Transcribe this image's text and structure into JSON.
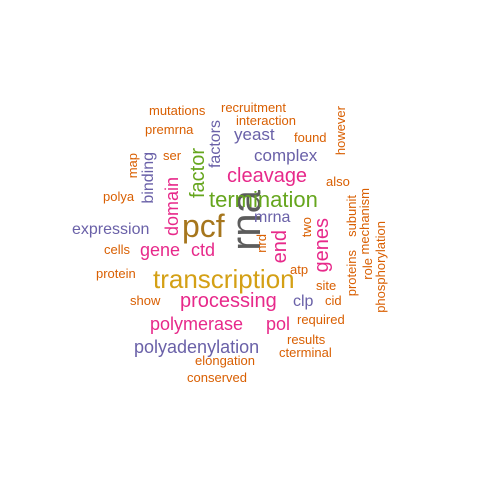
{
  "word_cloud": {
    "words": [
      {
        "id": "rna",
        "text": "rna",
        "color": "#5c5c5c"
      },
      {
        "id": "pcf",
        "text": "pcf",
        "color": "#a6761d"
      },
      {
        "id": "transcription",
        "text": "transcription",
        "color": "#d4a015"
      },
      {
        "id": "termination",
        "text": "termination",
        "color": "#66a61e"
      },
      {
        "id": "processing",
        "text": "processing",
        "color": "#e7298a"
      },
      {
        "id": "cleavage",
        "text": "cleavage",
        "color": "#e7298a"
      },
      {
        "id": "polymerase",
        "text": "polymerase",
        "color": "#e7298a"
      },
      {
        "id": "pol",
        "text": "pol",
        "color": "#e7298a"
      },
      {
        "id": "polyadenylation",
        "text": "polyadenylation",
        "color": "#6a61a8"
      },
      {
        "id": "domain",
        "text": "domain",
        "color": "#e7298a"
      },
      {
        "id": "factor",
        "text": "factor",
        "color": "#66a61e"
      },
      {
        "id": "gene",
        "text": "gene",
        "color": "#e7298a"
      },
      {
        "id": "ctd",
        "text": "ctd",
        "color": "#e7298a"
      },
      {
        "id": "end",
        "text": "end",
        "color": "#e7298a"
      },
      {
        "id": "genes",
        "text": "genes",
        "color": "#e7298a"
      },
      {
        "id": "complex",
        "text": "complex",
        "color": "#6a61a8"
      },
      {
        "id": "yeast",
        "text": "yeast",
        "color": "#6a61a8"
      },
      {
        "id": "factors",
        "text": "factors",
        "color": "#6a61a8"
      },
      {
        "id": "mrna",
        "text": "mrna",
        "color": "#6a61a8"
      },
      {
        "id": "expression",
        "text": "expression",
        "color": "#6a61a8"
      },
      {
        "id": "binding",
        "text": "binding",
        "color": "#6a61a8"
      },
      {
        "id": "clp",
        "text": "clp",
        "color": "#6a61a8"
      },
      {
        "id": "mutations",
        "text": "mutations",
        "color": "#d95f02"
      },
      {
        "id": "recruitment",
        "text": "recruitment",
        "color": "#d95f02"
      },
      {
        "id": "interaction",
        "text": "interaction",
        "color": "#d95f02"
      },
      {
        "id": "premrna",
        "text": "premrna",
        "color": "#d95f02"
      },
      {
        "id": "found",
        "text": "found",
        "color": "#d95f02"
      },
      {
        "id": "however",
        "text": "however",
        "color": "#d95f02"
      },
      {
        "id": "map",
        "text": "map",
        "color": "#d95f02"
      },
      {
        "id": "ser",
        "text": "ser",
        "color": "#d95f02"
      },
      {
        "id": "also",
        "text": "also",
        "color": "#d95f02"
      },
      {
        "id": "polya",
        "text": "polya",
        "color": "#d95f02"
      },
      {
        "id": "cells",
        "text": "cells",
        "color": "#d95f02"
      },
      {
        "id": "protein",
        "text": "protein",
        "color": "#d95f02"
      },
      {
        "id": "show",
        "text": "show",
        "color": "#d95f02"
      },
      {
        "id": "nrd",
        "text": "nrd",
        "color": "#d95f02"
      },
      {
        "id": "two",
        "text": "two",
        "color": "#d95f02"
      },
      {
        "id": "atp",
        "text": "atp",
        "color": "#d95f02"
      },
      {
        "id": "site",
        "text": "site",
        "color": "#d95f02"
      },
      {
        "id": "cid",
        "text": "cid",
        "color": "#d95f02"
      },
      {
        "id": "required",
        "text": "required",
        "color": "#d95f02"
      },
      {
        "id": "results",
        "text": "results",
        "color": "#d95f02"
      },
      {
        "id": "cterminal",
        "text": "cterminal",
        "color": "#d95f02"
      },
      {
        "id": "elongation",
        "text": "elongation",
        "color": "#d95f02"
      },
      {
        "id": "conserved",
        "text": "conserved",
        "color": "#d95f02"
      },
      {
        "id": "proteins",
        "text": "proteins",
        "color": "#d95f02"
      },
      {
        "id": "subunit",
        "text": "subunit",
        "color": "#d95f02"
      },
      {
        "id": "role",
        "text": "role",
        "color": "#d95f02"
      },
      {
        "id": "mechanism",
        "text": "mechanism",
        "color": "#d95f02"
      },
      {
        "id": "phosphorylation",
        "text": "phosphorylation",
        "color": "#d95f02"
      }
    ]
  }
}
